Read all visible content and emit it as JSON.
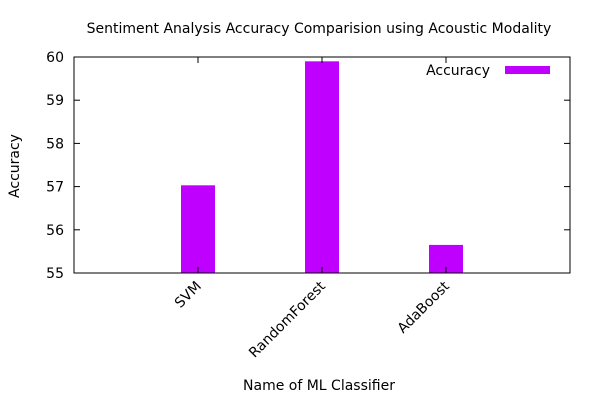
{
  "chart_data": {
    "type": "bar",
    "title": "Sentiment Analysis Accuracy Comparision using Acoustic Modality",
    "xlabel": "Name of ML Classifier",
    "ylabel": "Accuracy",
    "categories": [
      "SVM",
      "RandomForest",
      "AdaBoost"
    ],
    "series": [
      {
        "name": "Accuracy",
        "values": [
          57.03,
          59.9,
          55.65
        ],
        "color": "#bf00ff"
      }
    ],
    "ylim": [
      55,
      60
    ],
    "yticks": [
      "55",
      "56",
      "57",
      "58",
      "59",
      "60"
    ],
    "grid": false,
    "legend_position": "top-right"
  }
}
